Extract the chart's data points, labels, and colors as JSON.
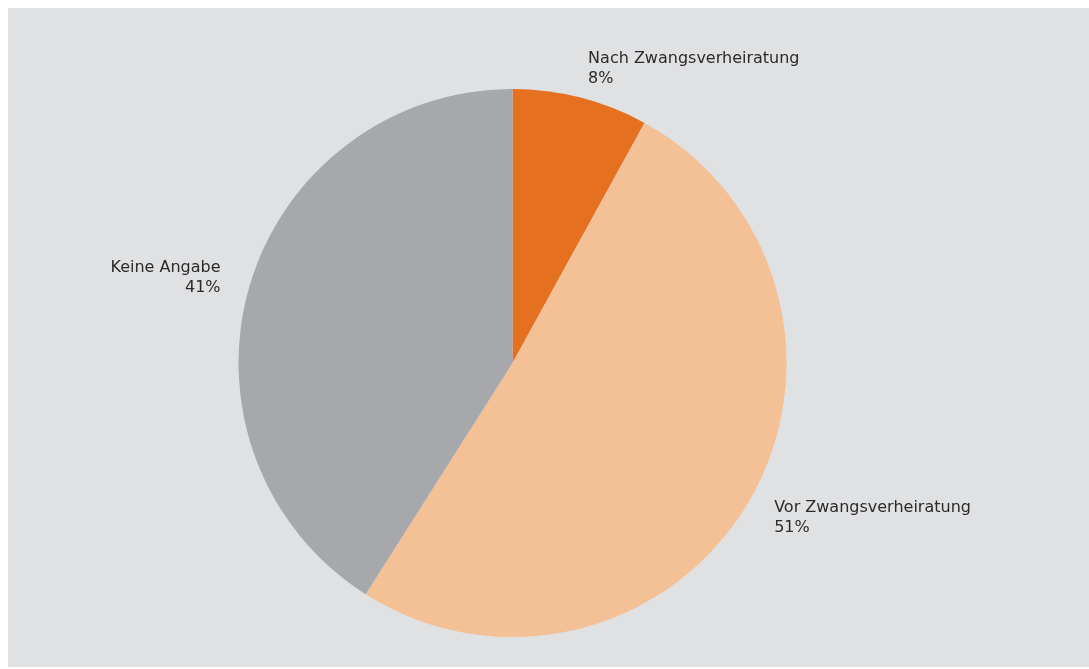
{
  "chart_data": {
    "type": "pie",
    "categories": [
      "Nach Zwangsverheiratung",
      "Vor Zwangsverheiratung",
      "Keine Angabe"
    ],
    "values": [
      8,
      51,
      41
    ],
    "value_labels": [
      "8%",
      "51%",
      "41%"
    ],
    "colors": [
      "#e5701f",
      "#f4c095",
      "#a7a8ab"
    ],
    "legend": false
  }
}
